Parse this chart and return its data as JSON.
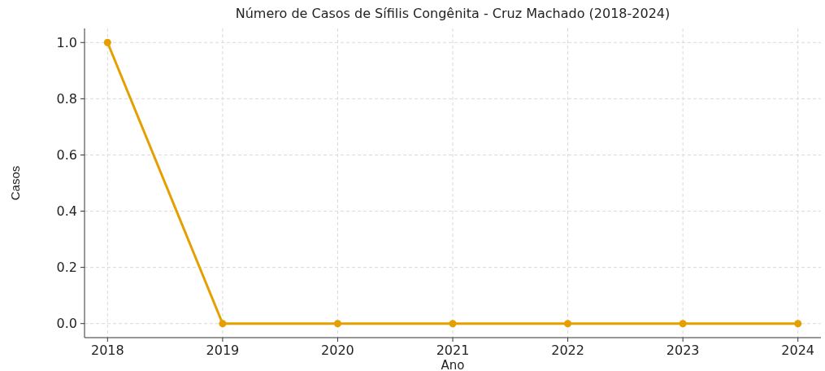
{
  "chart_data": {
    "type": "line",
    "title": "Número de Casos de Sífilis Congênita - Cruz Machado (2018-2024)",
    "xlabel": "Ano",
    "ylabel": "Casos",
    "x": [
      2018,
      2019,
      2020,
      2021,
      2022,
      2023,
      2024
    ],
    "series": [
      {
        "color": "#e69f00",
        "values": [
          1,
          0,
          0,
          0,
          0,
          0,
          0
        ]
      }
    ],
    "xlim": [
      2017.8,
      2024.2
    ],
    "xticks": [
      2018,
      2019,
      2020,
      2021,
      2022,
      2023,
      2024
    ],
    "ylim": [
      -0.05,
      1.05
    ],
    "yticks": [
      {
        "value": 0,
        "label": "0.0"
      },
      {
        "value": 0.2,
        "label": "0.2"
      },
      {
        "value": 0.4,
        "label": "0.4"
      },
      {
        "value": 0.6,
        "label": "0.6"
      },
      {
        "value": 0.8,
        "label": "0.8"
      },
      {
        "value": 1,
        "label": "1.0"
      }
    ],
    "grid": true,
    "marker": "circle",
    "line_style": "solid"
  }
}
